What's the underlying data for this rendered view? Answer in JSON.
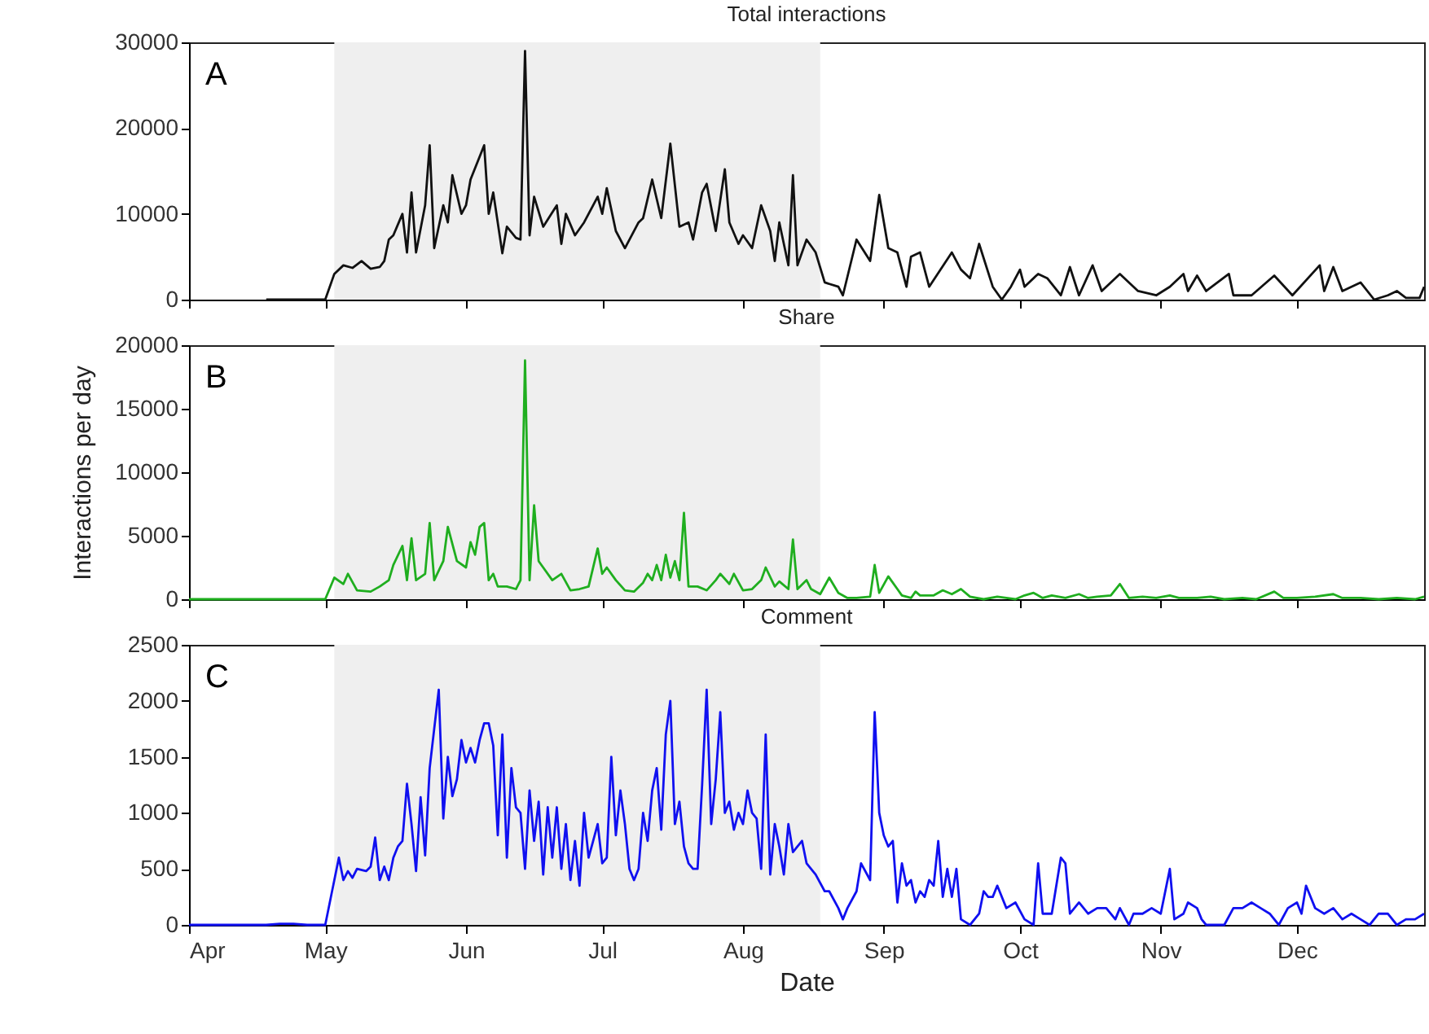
{
  "chart_data": [
    {
      "type": "line",
      "title": "Total interactions",
      "annotations": [
        "A"
      ],
      "color": "#111111",
      "tick_labels": "y",
      "x": [
        "--04-18",
        "--04-21",
        "--04-24",
        "--04-27",
        "--05-01",
        "--05-03",
        "--05-05",
        "--05-07",
        "--05-09",
        "--05-11",
        "--05-13",
        "--05-14",
        "--05-15",
        "--05-16",
        "--05-18",
        "--05-19",
        "--05-20",
        "--05-21",
        "--05-23",
        "--05-24",
        "--05-25",
        "--05-27",
        "--05-28",
        "--05-29",
        "--05-31",
        "--06-01",
        "--06-02",
        "--06-05",
        "--06-06",
        "--06-07",
        "--06-09",
        "--06-10",
        "--06-12",
        "--06-13",
        "--06-14",
        "--06-15",
        "--06-16",
        "--06-18",
        "--06-21",
        "--06-22",
        "--06-23",
        "--06-25",
        "--06-27",
        "--06-30",
        "--07-01",
        "--07-02",
        "--07-04",
        "--07-06",
        "--07-09",
        "--07-10",
        "--07-12",
        "--07-14",
        "--07-16",
        "--07-18",
        "--07-20",
        "--07-21",
        "--07-23",
        "--07-24",
        "--07-26",
        "--07-28",
        "--07-29",
        "--07-31",
        "--08-01",
        "--08-03",
        "--08-05",
        "--08-07",
        "--08-08",
        "--08-09",
        "--08-11",
        "--08-12",
        "--08-13",
        "--08-15",
        "--08-17",
        "--08-19",
        "--08-22",
        "--08-23",
        "--08-26",
        "--08-29",
        "--08-31",
        "--09-02",
        "--09-04",
        "--09-06",
        "--09-07",
        "--09-09",
        "--09-11",
        "--09-16",
        "--09-18",
        "--09-20",
        "--09-22",
        "--09-25",
        "--09-27",
        "--09-29",
        "--10-01",
        "--10-02",
        "--10-05",
        "--10-07",
        "--10-10",
        "--10-12",
        "--10-14",
        "--10-17",
        "--10-19",
        "--10-23",
        "--10-27",
        "--10-31",
        "--11-03",
        "--11-06",
        "--11-07",
        "--11-09",
        "--11-11",
        "--11-16",
        "--11-17",
        "--11-21",
        "--11-26",
        "--11-30",
        "--12-06",
        "--12-07",
        "--12-09",
        "--12-11",
        "--12-15",
        "--12-18",
        "--12-21",
        "--12-23",
        "--12-25",
        "--12-28",
        "--12-29"
      ],
      "values": [
        0,
        0,
        0,
        0,
        0,
        3000,
        4000,
        3700,
        4500,
        3600,
        3800,
        4500,
        7000,
        7500,
        10000,
        5500,
        12500,
        5500,
        11000,
        18000,
        6000,
        11000,
        9000,
        14500,
        10000,
        11000,
        14000,
        18000,
        10000,
        12500,
        5400,
        8500,
        7200,
        7000,
        29000,
        7500,
        12000,
        8500,
        11000,
        6500,
        10000,
        7500,
        9000,
        12000,
        10000,
        13000,
        8000,
        6000,
        9000,
        9500,
        14000,
        9500,
        18200,
        8500,
        9000,
        7000,
        12500,
        13500,
        8000,
        15200,
        9000,
        6500,
        7500,
        6000,
        11000,
        8000,
        4500,
        9000,
        4000,
        14500,
        4000,
        7000,
        5500,
        2000,
        1500,
        500,
        7000,
        4500,
        12200,
        6000,
        5500,
        1500,
        5000,
        5500,
        1500,
        5500,
        3500,
        2500,
        6500,
        1500,
        0,
        1500,
        3500,
        1500,
        3000,
        2500,
        500,
        3800,
        500,
        4000,
        1000,
        3000,
        1000,
        500,
        1500,
        3000,
        1000,
        2800,
        1000,
        3000,
        500,
        500,
        2800,
        500,
        4000,
        1000,
        3800,
        1000,
        2000,
        0,
        500,
        1000,
        200,
        200,
        1500
      ],
      "xlim": [
        "--04-01",
        "--12-29"
      ],
      "xticks": [
        {
          "value": "--04-01",
          "label": null
        },
        {
          "value": "--05-01",
          "label": null
        },
        {
          "value": "--06-01",
          "label": null
        },
        {
          "value": "--07-01",
          "label": null
        },
        {
          "value": "--08-01",
          "label": null
        },
        {
          "value": "--09-01",
          "label": null
        },
        {
          "value": "--10-01",
          "label": null
        },
        {
          "value": "--11-01",
          "label": null
        },
        {
          "value": "--12-01",
          "label": null
        }
      ],
      "ylim": [
        0,
        30000
      ],
      "yticks": [
        0,
        10000,
        20000,
        30000
      ],
      "bands": [
        {
          "axis": "x",
          "from": "--05-03",
          "to": "--08-18",
          "color": "#efefef"
        }
      ]
    },
    {
      "type": "line",
      "title": "Share",
      "ylabel": "Interactions per day",
      "annotations": [
        "B"
      ],
      "color": "#1fae1f",
      "tick_labels": "y",
      "x": [
        "--04-01",
        "--05-01",
        "--05-03",
        "--05-05",
        "--05-06",
        "--05-08",
        "--05-11",
        "--05-13",
        "--05-15",
        "--05-16",
        "--05-18",
        "--05-19",
        "--05-20",
        "--05-21",
        "--05-23",
        "--05-24",
        "--05-25",
        "--05-27",
        "--05-28",
        "--05-30",
        "--06-01",
        "--06-02",
        "--06-03",
        "--06-04",
        "--06-05",
        "--06-06",
        "--06-07",
        "--06-08",
        "--06-10",
        "--06-12",
        "--06-13",
        "--06-14",
        "--06-15",
        "--06-16",
        "--06-17",
        "--06-18",
        "--06-20",
        "--06-22",
        "--06-24",
        "--06-26",
        "--06-28",
        "--06-30",
        "--07-01",
        "--07-02",
        "--07-04",
        "--07-06",
        "--07-08",
        "--07-10",
        "--07-11",
        "--07-12",
        "--07-13",
        "--07-14",
        "--07-15",
        "--07-16",
        "--07-17",
        "--07-18",
        "--07-19",
        "--07-20",
        "--07-22",
        "--07-24",
        "--07-26",
        "--07-27",
        "--07-29",
        "--07-30",
        "--08-01",
        "--08-03",
        "--08-05",
        "--08-06",
        "--08-08",
        "--08-09",
        "--08-11",
        "--08-12",
        "--08-13",
        "--08-15",
        "--08-16",
        "--08-18",
        "--08-20",
        "--08-22",
        "--08-24",
        "--08-26",
        "--08-29",
        "--08-30",
        "--08-31",
        "--09-02",
        "--09-04",
        "--09-05",
        "--09-07",
        "--09-08",
        "--09-09",
        "--09-12",
        "--09-14",
        "--09-16",
        "--09-18",
        "--09-20",
        "--09-23",
        "--09-26",
        "--09-28",
        "--09-30",
        "--10-02",
        "--10-04",
        "--10-06",
        "--10-08",
        "--10-11",
        "--10-14",
        "--10-16",
        "--10-18",
        "--10-21",
        "--10-23",
        "--10-25",
        "--10-28",
        "--10-31",
        "--11-03",
        "--11-05",
        "--11-09",
        "--11-12",
        "--11-15",
        "--11-19",
        "--11-22",
        "--11-26",
        "--11-28",
        "--12-01",
        "--12-05",
        "--12-09",
        "--12-11",
        "--12-15",
        "--12-19",
        "--12-23",
        "--12-27",
        "--12-29"
      ],
      "values": [
        0,
        0,
        1700,
        1200,
        2000,
        700,
        600,
        1000,
        1500,
        2700,
        4200,
        1500,
        4800,
        1500,
        2000,
        6000,
        1500,
        3000,
        5700,
        3000,
        2500,
        4500,
        3500,
        5700,
        6000,
        1500,
        2000,
        1000,
        1000,
        800,
        1500,
        18800,
        1500,
        7400,
        3000,
        2500,
        1500,
        2000,
        700,
        800,
        1000,
        4000,
        2000,
        2500,
        1500,
        700,
        600,
        1300,
        2000,
        1500,
        2700,
        1500,
        3500,
        1700,
        3000,
        1500,
        6800,
        1000,
        1000,
        700,
        1500,
        2000,
        1200,
        2000,
        700,
        800,
        1500,
        2500,
        1000,
        1400,
        800,
        4700,
        800,
        1500,
        800,
        400,
        1700,
        500,
        100,
        100,
        200,
        2700,
        500,
        1800,
        800,
        300,
        100,
        600,
        300,
        300,
        700,
        400,
        800,
        200,
        0,
        200,
        100,
        0,
        300,
        500,
        100,
        300,
        100,
        400,
        100,
        200,
        300,
        1200,
        100,
        200,
        100,
        300,
        100,
        100,
        200,
        0,
        100,
        0,
        600,
        100,
        100,
        200,
        400,
        100,
        100,
        0,
        100,
        0,
        200
      ],
      "xlim": [
        "--04-01",
        "--12-29"
      ],
      "xticks": [
        {
          "value": "--04-01",
          "label": null
        },
        {
          "value": "--05-01",
          "label": null
        },
        {
          "value": "--06-01",
          "label": null
        },
        {
          "value": "--07-01",
          "label": null
        },
        {
          "value": "--08-01",
          "label": null
        },
        {
          "value": "--09-01",
          "label": null
        },
        {
          "value": "--10-01",
          "label": null
        },
        {
          "value": "--11-01",
          "label": null
        },
        {
          "value": "--12-01",
          "label": null
        }
      ],
      "ylim": [
        0,
        20000
      ],
      "yticks": [
        0,
        5000,
        10000,
        15000,
        20000
      ],
      "bands": [
        {
          "axis": "x",
          "from": "--05-03",
          "to": "--08-18",
          "color": "#efefef"
        }
      ]
    },
    {
      "type": "line",
      "title": "Comment",
      "xlabel": "Date",
      "annotations": [
        "C"
      ],
      "color": "#1010f0",
      "x": [
        "--04-01",
        "--04-18",
        "--04-21",
        "--04-24",
        "--04-27",
        "--05-01",
        "--05-04",
        "--05-05",
        "--05-06",
        "--05-07",
        "--05-08",
        "--05-10",
        "--05-11",
        "--05-12",
        "--05-13",
        "--05-14",
        "--05-15",
        "--05-16",
        "--05-17",
        "--05-18",
        "--05-19",
        "--05-20",
        "--05-21",
        "--05-22",
        "--05-23",
        "--05-24",
        "--05-25",
        "--05-26",
        "--05-27",
        "--05-28",
        "--05-29",
        "--05-30",
        "--05-31",
        "--06-01",
        "--06-02",
        "--06-03",
        "--06-04",
        "--06-05",
        "--06-06",
        "--06-07",
        "--06-08",
        "--06-09",
        "--06-10",
        "--06-11",
        "--06-12",
        "--06-13",
        "--06-14",
        "--06-15",
        "--06-16",
        "--06-17",
        "--06-18",
        "--06-19",
        "--06-20",
        "--06-21",
        "--06-22",
        "--06-23",
        "--06-24",
        "--06-25",
        "--06-26",
        "--06-27",
        "--06-28",
        "--06-29",
        "--06-30",
        "--07-01",
        "--07-02",
        "--07-03",
        "--07-04",
        "--07-05",
        "--07-06",
        "--07-07",
        "--07-08",
        "--07-09",
        "--07-10",
        "--07-11",
        "--07-12",
        "--07-13",
        "--07-14",
        "--07-15",
        "--07-16",
        "--07-17",
        "--07-18",
        "--07-19",
        "--07-20",
        "--07-21",
        "--07-22",
        "--07-23",
        "--07-24",
        "--07-25",
        "--07-26",
        "--07-27",
        "--07-28",
        "--07-29",
        "--07-30",
        "--07-31",
        "--08-01",
        "--08-02",
        "--08-03",
        "--08-04",
        "--08-05",
        "--08-06",
        "--08-07",
        "--08-08",
        "--08-09",
        "--08-10",
        "--08-11",
        "--08-12",
        "--08-13",
        "--08-14",
        "--08-15",
        "--08-17",
        "--08-19",
        "--08-20",
        "--08-22",
        "--08-23",
        "--08-24",
        "--08-26",
        "--08-27",
        "--08-29",
        "--08-30",
        "--08-31",
        "--09-01",
        "--09-02",
        "--09-03",
        "--09-04",
        "--09-05",
        "--09-06",
        "--09-07",
        "--09-08",
        "--09-09",
        "--09-10",
        "--09-11",
        "--09-12",
        "--09-13",
        "--09-14",
        "--09-15",
        "--09-16",
        "--09-17",
        "--09-18",
        "--09-20",
        "--09-22",
        "--09-23",
        "--09-24",
        "--09-25",
        "--09-26",
        "--09-28",
        "--09-30",
        "--10-02",
        "--10-04",
        "--10-05",
        "--10-06",
        "--10-08",
        "--10-10",
        "--10-11",
        "--10-12",
        "--10-14",
        "--10-16",
        "--10-18",
        "--10-20",
        "--10-22",
        "--10-23",
        "--10-25",
        "--10-26",
        "--10-28",
        "--10-30",
        "--11-01",
        "--11-03",
        "--11-04",
        "--11-06",
        "--11-07",
        "--11-09",
        "--11-10",
        "--11-11",
        "--11-15",
        "--11-17",
        "--11-19",
        "--11-21",
        "--11-23",
        "--11-25",
        "--11-27",
        "--11-29",
        "--12-01",
        "--12-02",
        "--12-03",
        "--12-05",
        "--12-07",
        "--12-09",
        "--12-11",
        "--12-13",
        "--12-15",
        "--12-17",
        "--12-19",
        "--12-21",
        "--12-23",
        "--12-25",
        "--12-27",
        "--12-29"
      ],
      "values": [
        0,
        0,
        10,
        10,
        0,
        0,
        600,
        400,
        480,
        420,
        500,
        480,
        520,
        780,
        400,
        520,
        400,
        600,
        700,
        750,
        1260,
        900,
        480,
        1140,
        620,
        1400,
        1750,
        2100,
        950,
        1500,
        1150,
        1300,
        1650,
        1450,
        1580,
        1450,
        1650,
        1800,
        1800,
        1600,
        800,
        1700,
        600,
        1400,
        1050,
        1000,
        500,
        1200,
        750,
        1100,
        450,
        1050,
        600,
        1050,
        500,
        900,
        400,
        750,
        350,
        1000,
        600,
        750,
        900,
        550,
        600,
        1500,
        800,
        1200,
        900,
        500,
        400,
        500,
        1000,
        750,
        1200,
        1400,
        850,
        1700,
        2000,
        900,
        1100,
        700,
        550,
        500,
        500,
        1250,
        2100,
        900,
        1300,
        1900,
        1000,
        1100,
        850,
        1000,
        900,
        1200,
        1000,
        950,
        500,
        1700,
        450,
        900,
        700,
        450,
        900,
        650,
        700,
        750,
        550,
        450,
        300,
        300,
        150,
        50,
        150,
        300,
        550,
        400,
        1900,
        1000,
        800,
        700,
        750,
        200,
        550,
        350,
        400,
        200,
        300,
        250,
        400,
        350,
        750,
        250,
        500,
        250,
        500,
        50,
        0,
        100,
        300,
        250,
        250,
        350,
        150,
        200,
        50,
        0,
        550,
        100,
        100,
        600,
        550,
        100,
        200,
        100,
        150,
        150,
        50,
        150,
        0,
        100,
        100,
        150,
        100,
        500,
        50,
        100,
        200,
        150,
        50,
        0,
        0,
        150,
        150,
        200,
        150,
        100,
        0,
        150,
        200,
        100,
        350,
        150,
        100,
        150,
        50,
        100,
        50,
        0,
        100,
        100,
        0,
        50,
        50,
        100
      ],
      "xlim": [
        "--04-01",
        "--12-29"
      ],
      "xticks": [
        {
          "value": "--04-01",
          "label": "Apr"
        },
        {
          "value": "--05-01",
          "label": "May"
        },
        {
          "value": "--06-01",
          "label": "Jun"
        },
        {
          "value": "--07-01",
          "label": "Jul"
        },
        {
          "value": "--08-01",
          "label": "Aug"
        },
        {
          "value": "--09-01",
          "label": "Sep"
        },
        {
          "value": "--10-01",
          "label": "Oct"
        },
        {
          "value": "--11-01",
          "label": "Nov"
        },
        {
          "value": "--12-01",
          "label": "Dec"
        }
      ],
      "ylim": [
        0,
        2500
      ],
      "yticks": [
        0,
        500,
        1000,
        1500,
        2000,
        2500
      ],
      "bands": [
        {
          "axis": "x",
          "from": "--05-03",
          "to": "--08-18",
          "color": "#efefef"
        }
      ]
    }
  ]
}
